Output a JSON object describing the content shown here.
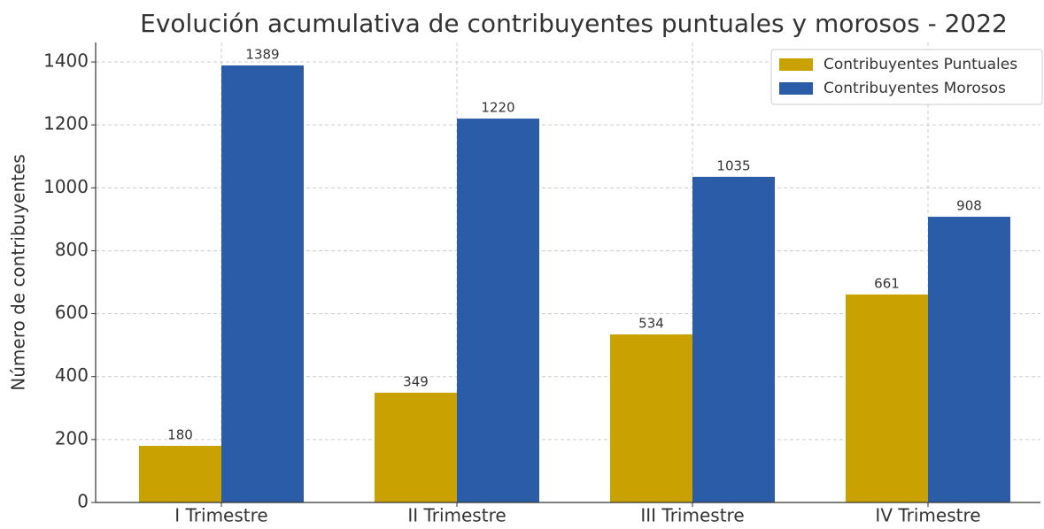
{
  "chart_data": {
    "type": "bar",
    "title": "Evolución acumulativa de contribuyentes puntuales y morosos - 2022",
    "y_label": "Número de contribuyentes",
    "categories": [
      "I Trimestre",
      "II Trimestre",
      "III Trimestre",
      "IV Trimestre"
    ],
    "series": [
      {
        "name": "Contribuyentes Puntuales",
        "color": "#c9a100",
        "values": [
          180,
          349,
          534,
          661
        ]
      },
      {
        "name": "Contribuyentes Morosos",
        "color": "#2a5ca8",
        "values": [
          1389,
          1220,
          1035,
          908
        ]
      }
    ],
    "ylim": [
      0,
      1462
    ],
    "yticks": [
      0,
      200,
      400,
      600,
      800,
      1000,
      1200,
      1400
    ],
    "grid": true,
    "legend": "upper right"
  }
}
